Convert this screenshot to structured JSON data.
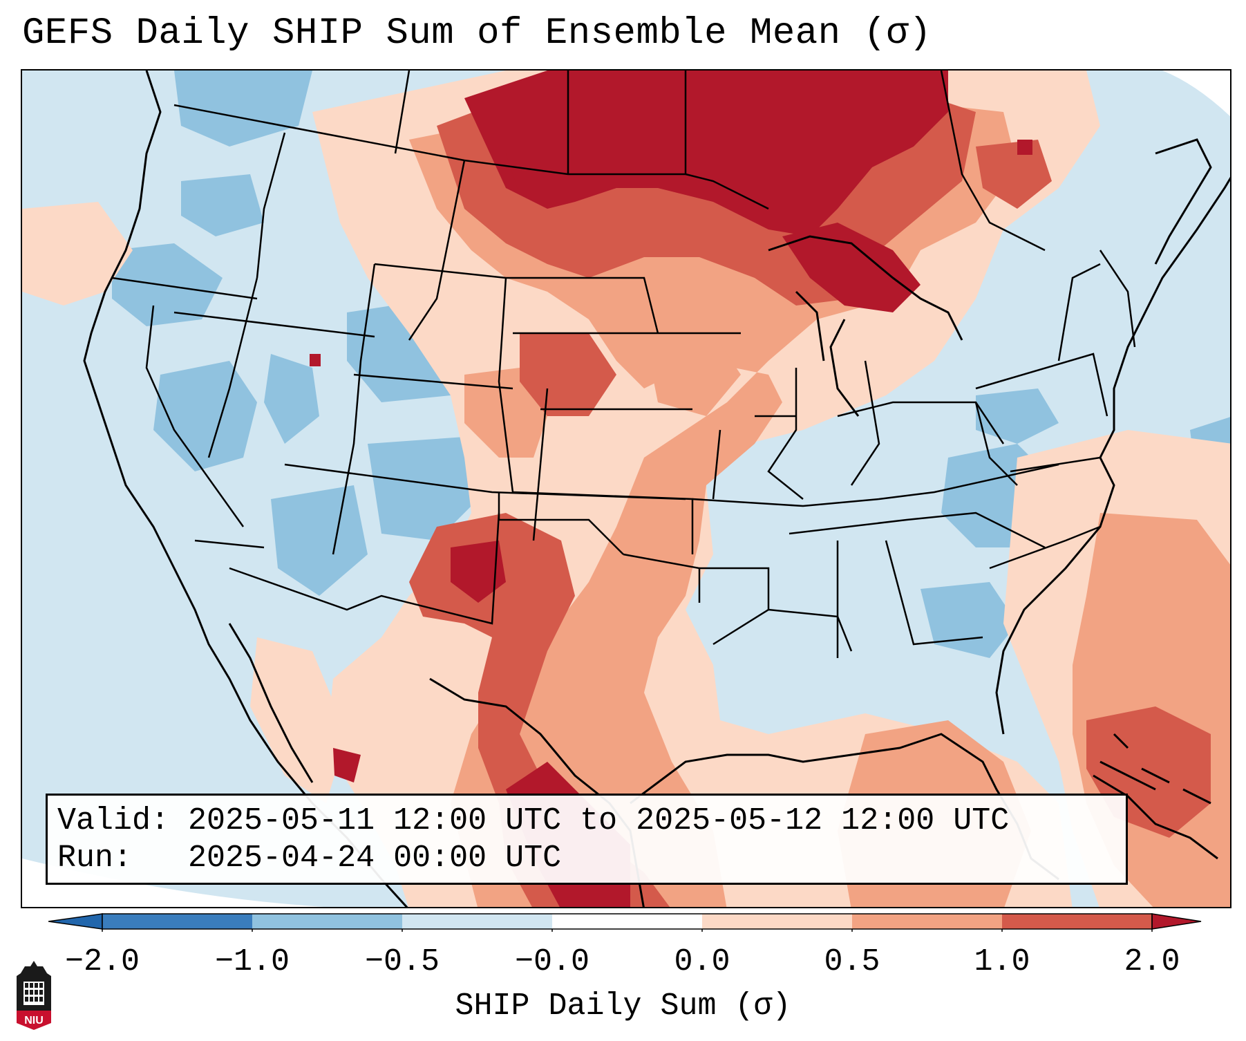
{
  "title": "GEFS Daily SHIP Sum of Ensemble Mean (σ)",
  "info": {
    "valid_line": "Valid: 2025-05-11 12:00 UTC to 2025-05-12 12:00 UTC",
    "run_line": "Run:   2025-04-24 00:00 UTC"
  },
  "colorbar": {
    "label": "SHIP Daily Sum (σ)",
    "ticks": [
      "−2.0",
      "−1.0",
      "−0.5",
      "−0.0",
      "0.0",
      "0.5",
      "1.0",
      "2.0"
    ],
    "colors": [
      "#3a7dbd",
      "#90c2df",
      "#d1e6f1",
      "#ffffff",
      "#fcd9c6",
      "#f2a383",
      "#d45a4b",
      "#b2182b"
    ],
    "extend": "both"
  },
  "map": {
    "projection": "lambert-conformal",
    "region": "Continental United States",
    "ocean_color": "#d1e6f1",
    "boundary_color": "#000000"
  },
  "logo": {
    "text": "NIU",
    "color": "#c8102e"
  }
}
